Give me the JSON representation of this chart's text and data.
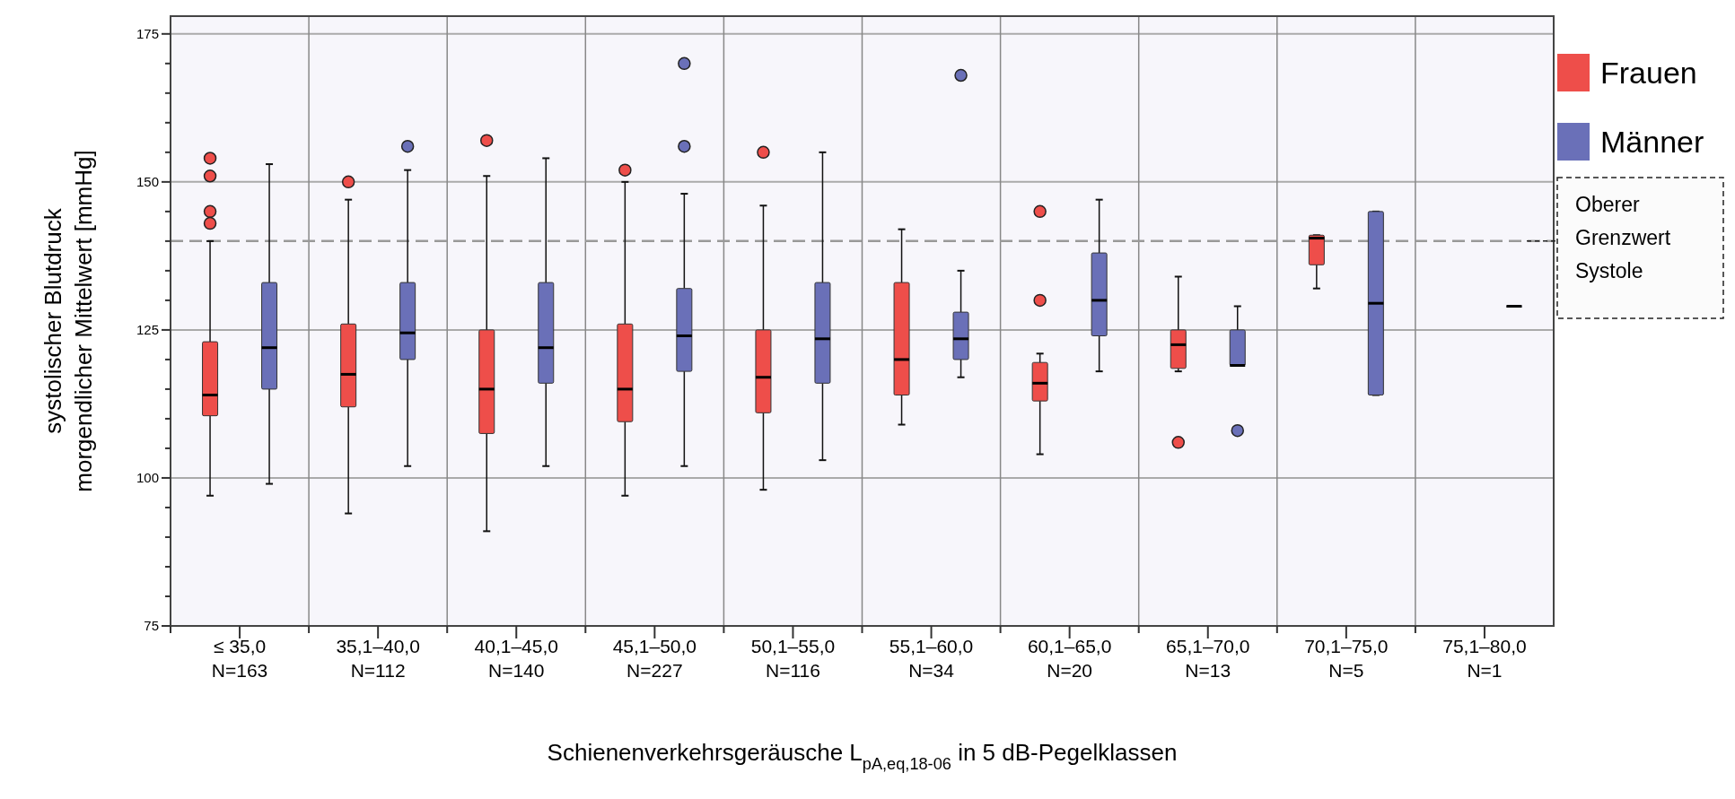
{
  "chart_data": {
    "type": "box",
    "xlabel": "Schienenverkehrsgeräusche L$_{pA,eq,18-06}$ in 5 dB-Pegelklassen",
    "ylabel": "systolischer Blutdruck\nmorgendlicher Mittelwert [mmHg]",
    "categories": [
      "≤ 35,0\nN=163",
      "35,1–40,0\nN=112",
      "40,1–45,0\nN=140",
      "45,1–50,0\nN=227",
      "50,1–55,0\nN=116",
      "55,1–60,0\nN=34",
      "60,1–65,0\nN=20",
      "65,1–70,0\nN=13",
      "70,1–75,0\nN=5",
      "75,1–80,0\nN=1"
    ],
    "series": [
      {
        "name": "Frauen",
        "color": "#ee4e4a",
        "boxes": [
          {
            "low": 97,
            "q1": 110.5,
            "median": 114,
            "q3": 123,
            "high": 140,
            "outliers": [
              154,
              151,
              145,
              143
            ]
          },
          {
            "low": 94,
            "q1": 112,
            "median": 117.5,
            "q3": 126,
            "high": 147,
            "outliers": [
              150
            ]
          },
          {
            "low": 91,
            "q1": 107.5,
            "median": 115,
            "q3": 125,
            "high": 151,
            "outliers": [
              157
            ]
          },
          {
            "low": 97,
            "q1": 109.5,
            "median": 115,
            "q3": 126,
            "high": 150,
            "outliers": [
              152
            ]
          },
          {
            "low": 98,
            "q1": 111,
            "median": 117,
            "q3": 125,
            "high": 146,
            "outliers": [
              155
            ]
          },
          {
            "low": 109,
            "q1": 114,
            "median": 120,
            "q3": 133,
            "high": 142
          },
          {
            "low": 104,
            "q1": 113,
            "median": 116,
            "q3": 119.5,
            "high": 121,
            "outliers": [
              130,
              145
            ]
          },
          {
            "low": 118,
            "q1": 118.5,
            "median": 122.5,
            "q3": 125,
            "high": 134,
            "outliers": [
              106
            ]
          },
          {
            "low": 132,
            "q1": 136,
            "median": 140.5,
            "q3": 141,
            "high": 141
          },
          null
        ]
      },
      {
        "name": "Männer",
        "color": "#6a70b8",
        "boxes": [
          {
            "low": 99,
            "q1": 115,
            "median": 122,
            "q3": 133,
            "high": 153
          },
          {
            "low": 102,
            "q1": 120,
            "median": 124.5,
            "q3": 133,
            "high": 152,
            "outliers": [
              156
            ]
          },
          {
            "low": 102,
            "q1": 116,
            "median": 122,
            "q3": 133,
            "high": 154
          },
          {
            "low": 102,
            "q1": 118,
            "median": 124,
            "q3": 132,
            "high": 148,
            "outliers": [
              156,
              170
            ]
          },
          {
            "low": 103,
            "q1": 116,
            "median": 123.5,
            "q3": 133,
            "high": 155
          },
          {
            "low": 117,
            "q1": 120,
            "median": 123.5,
            "q3": 128,
            "high": 135,
            "outliers": [
              168
            ]
          },
          {
            "low": 118,
            "q1": 124,
            "median": 130,
            "q3": 138,
            "high": 147
          },
          {
            "low": 119,
            "q1": 119,
            "median": 119,
            "q3": 125,
            "high": 129,
            "outliers": [
              108
            ]
          },
          {
            "low": 114,
            "q1": 114,
            "median": 129.5,
            "q3": 145,
            "high": 145
          },
          {
            "low": 129,
            "q1": 129,
            "median": 129,
            "q3": 129,
            "high": 129
          }
        ]
      }
    ],
    "ylim": [
      75,
      178
    ],
    "yticks": [
      75,
      {
        "value": 80,
        "label": null
      },
      {
        "value": 85,
        "label": null
      },
      {
        "value": 90,
        "label": null
      },
      {
        "value": 95,
        "label": null
      },
      100,
      {
        "value": 105,
        "label": null
      },
      {
        "value": 110,
        "label": null
      },
      {
        "value": 115,
        "label": null
      },
      {
        "value": 120,
        "label": null
      },
      125,
      {
        "value": 130,
        "label": null
      },
      {
        "value": 135,
        "label": null
      },
      {
        "value": 140,
        "label": null
      },
      {
        "value": 145,
        "label": null
      },
      150,
      {
        "value": 155,
        "label": null
      },
      {
        "value": 160,
        "label": null
      },
      {
        "value": 165,
        "label": null
      },
      {
        "value": 170,
        "label": null
      },
      175
    ],
    "grid": true,
    "legend": "right",
    "ref_lines": [
      {
        "axis": "y",
        "value": 140,
        "label": "Oberer Grenzwert Systole",
        "color": "#999999",
        "line_style": "dashed"
      }
    ]
  }
}
